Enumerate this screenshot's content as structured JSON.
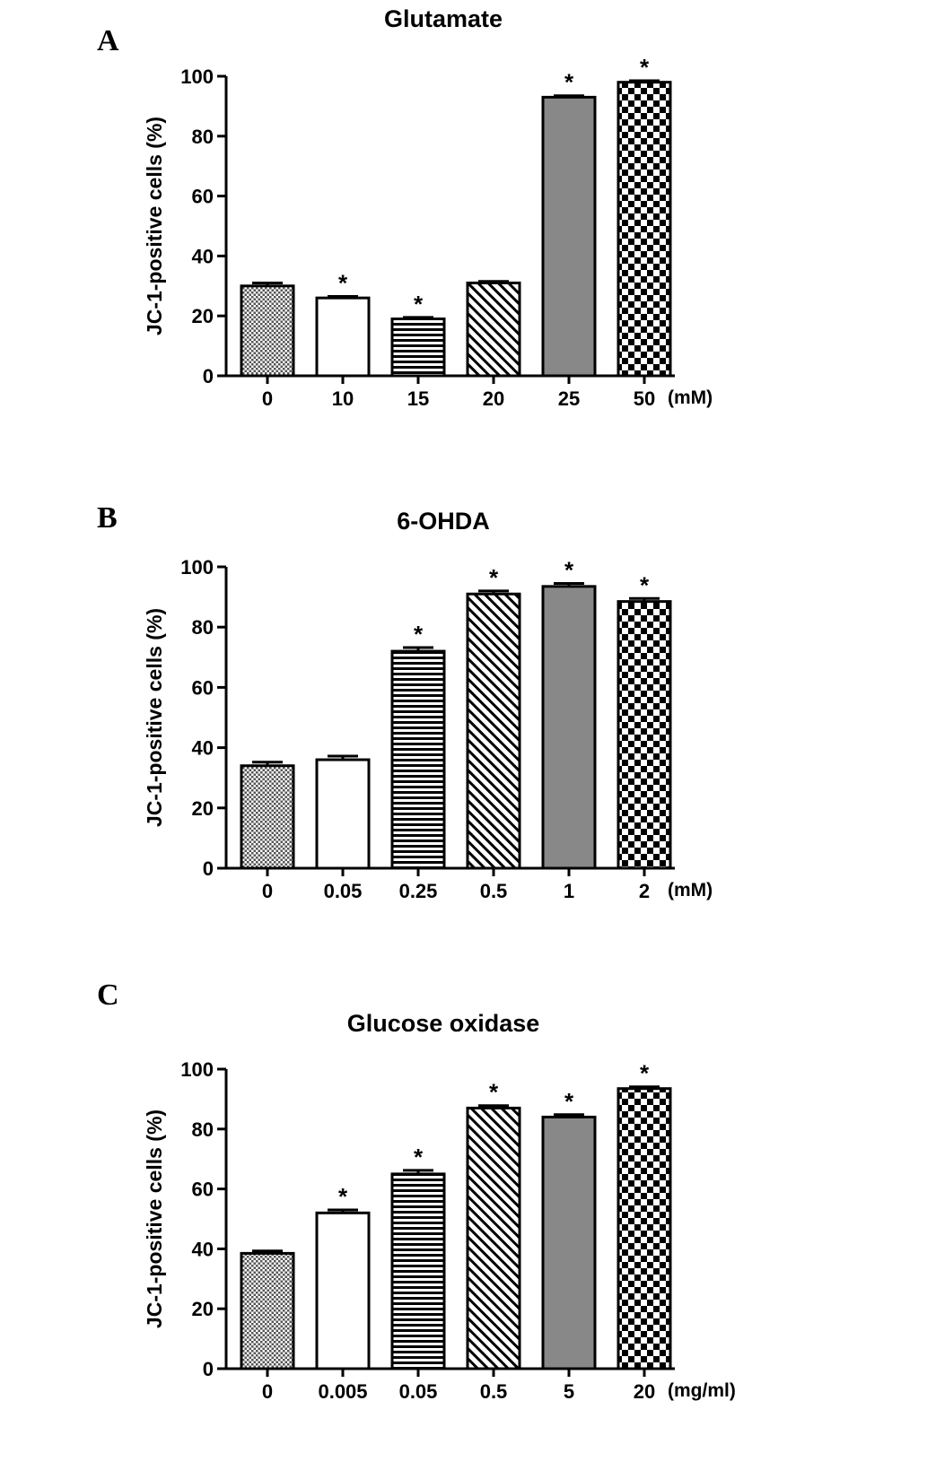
{
  "chart_data": [
    {
      "type": "bar",
      "panel": "A",
      "title": "Glutamate",
      "ylabel": "JC-1-positive cells (%)",
      "unit": "(mM)",
      "ylim": [
        0,
        100
      ],
      "yticks": [
        0,
        20,
        40,
        60,
        80,
        100
      ],
      "categories": [
        "0",
        "10",
        "15",
        "20",
        "25",
        "50"
      ],
      "values": [
        30,
        26,
        19,
        31,
        93,
        98
      ],
      "errors": [
        1.0,
        0.5,
        0.5,
        0.5,
        0.5,
        0.5
      ],
      "significance": [
        "",
        "*",
        "*",
        "",
        "*",
        "*"
      ],
      "patterns": [
        "dots",
        "white",
        "hlines",
        "diagonal",
        "gray",
        "checker"
      ],
      "grid": false
    },
    {
      "type": "bar",
      "panel": "B",
      "title": "6-OHDA",
      "ylabel": "JC-1-positive cells (%)",
      "unit": "(mM)",
      "ylim": [
        0,
        100
      ],
      "yticks": [
        0,
        20,
        40,
        60,
        80,
        100
      ],
      "categories": [
        "0",
        "0.05",
        "0.25",
        "0.5",
        "1",
        "2"
      ],
      "values": [
        34,
        36,
        72,
        91,
        93.5,
        88.5
      ],
      "errors": [
        1.2,
        1.2,
        1.2,
        1.0,
        1.0,
        1.0
      ],
      "significance": [
        "",
        "",
        "*",
        "*",
        "*",
        "*"
      ],
      "patterns": [
        "dots",
        "white",
        "hlines",
        "diagonal",
        "gray",
        "checker"
      ],
      "grid": false
    },
    {
      "type": "bar",
      "panel": "C",
      "title": "Glucose oxidase",
      "ylabel": "JC-1-positive cells (%)",
      "unit": "(mg/ml)",
      "ylim": [
        0,
        100
      ],
      "yticks": [
        0,
        20,
        40,
        60,
        80,
        100
      ],
      "categories": [
        "0",
        "0.005",
        "0.05",
        "0.5",
        "5",
        "20"
      ],
      "values": [
        38.5,
        52,
        65,
        87,
        84,
        93.5
      ],
      "errors": [
        0.8,
        1.0,
        1.2,
        0.8,
        0.8,
        0.6
      ],
      "significance": [
        "",
        "*",
        "*",
        "*",
        "*",
        "*"
      ],
      "patterns": [
        "dots",
        "white",
        "hlines",
        "diagonal",
        "gray",
        "checker"
      ],
      "grid": false
    }
  ],
  "colors": {
    "axis": "#000000",
    "gray_bar": "#888888",
    "white_bar": "#ffffff"
  }
}
